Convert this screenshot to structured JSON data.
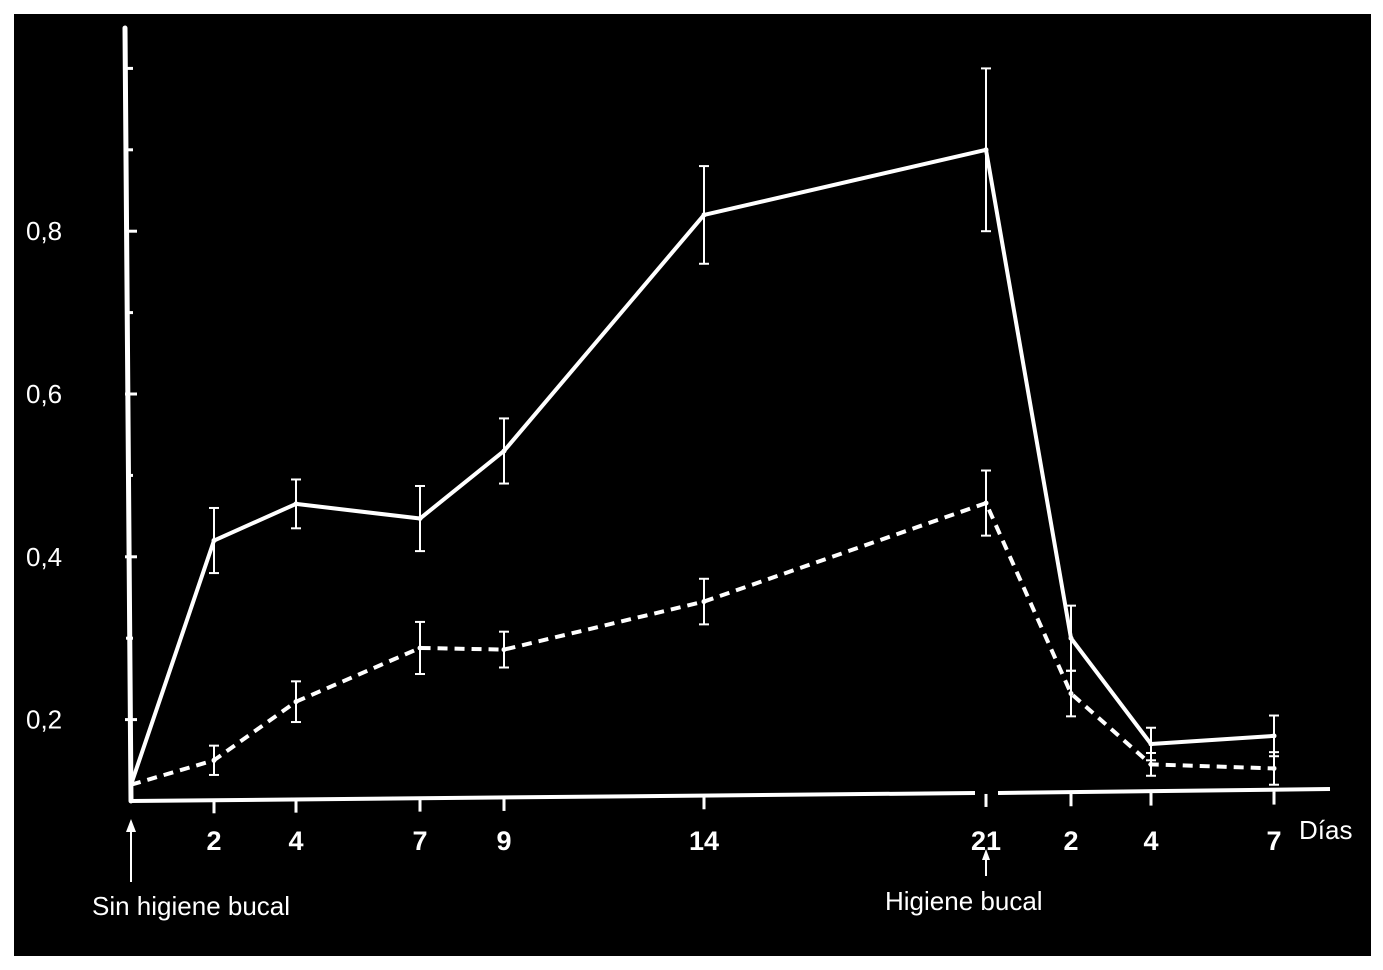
{
  "chart_data": {
    "type": "line",
    "title": "",
    "xlabel": "Días",
    "ylabel": "",
    "ylim": [
      0.1,
      1.0
    ],
    "y_ticks": [
      0.2,
      0.4,
      0.6,
      0.8
    ],
    "y_tick_labels": [
      "0,2",
      "0,4",
      "0,6",
      "0,8"
    ],
    "y_minor_ticks": [
      0.3,
      0.5,
      0.7,
      0.9,
      1.0
    ],
    "grid": false,
    "legend": "none",
    "x_tick_labels": [
      "2",
      "4",
      "7",
      "9",
      "14",
      "21",
      "2",
      "4",
      "7"
    ],
    "series": [
      {
        "style": "solid",
        "color": "#ffffff",
        "points": [
          {
            "day": 0,
            "y": 0.12,
            "err": 0
          },
          {
            "day": 2,
            "y": 0.42,
            "err": 0.04
          },
          {
            "day": 4,
            "y": 0.465,
            "err": 0.03
          },
          {
            "day": 7,
            "y": 0.447,
            "err": 0.04
          },
          {
            "day": 9,
            "y": 0.53,
            "err": 0.04
          },
          {
            "day": 14,
            "y": 0.82,
            "err": 0.06
          },
          {
            "day": 21,
            "y": 0.9,
            "err": 0.1
          },
          {
            "day": 23,
            "y": 0.3,
            "err": 0.04
          },
          {
            "day": 25,
            "y": 0.17,
            "err": 0.02
          },
          {
            "day": 28,
            "y": 0.18,
            "err": 0.025
          }
        ]
      },
      {
        "style": "dashed",
        "color": "#ffffff",
        "points": [
          {
            "day": 0,
            "y": 0.12,
            "err": 0
          },
          {
            "day": 2,
            "y": 0.15,
            "err": 0.018
          },
          {
            "day": 4,
            "y": 0.222,
            "err": 0.025
          },
          {
            "day": 7,
            "y": 0.288,
            "err": 0.032
          },
          {
            "day": 9,
            "y": 0.286,
            "err": 0.022
          },
          {
            "day": 14,
            "y": 0.345,
            "err": 0.028
          },
          {
            "day": 21,
            "y": 0.466,
            "err": 0.04
          },
          {
            "day": 23,
            "y": 0.232,
            "err": 0.028
          },
          {
            "day": 25,
            "y": 0.145,
            "err": 0.014
          },
          {
            "day": 28,
            "y": 0.14,
            "err": 0.02
          }
        ]
      }
    ],
    "annotations": [
      {
        "text": "Sin higiene bucal",
        "at_day": 0
      },
      {
        "text": "Higiene bucal",
        "at_day": 21
      }
    ]
  }
}
